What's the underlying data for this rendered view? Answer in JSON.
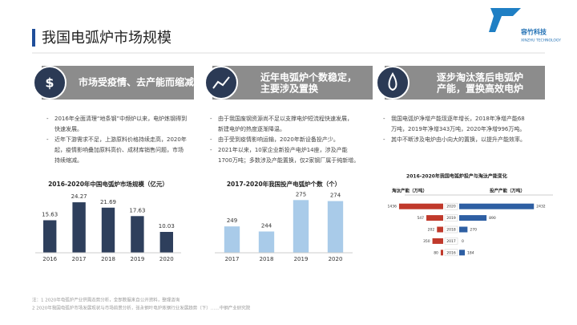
{
  "header": {
    "title": "我国电弧炉市场规模",
    "logo_name": "容竹科技",
    "logo_sub": "XINZHU TECHNOLOGY"
  },
  "panels": [
    {
      "header": "市场受疫情、去产能而缩减",
      "bullets": [
        [
          "2016年全面清理“地条钢”中频炉以来，电炉炼钢得到",
          "快速发展。"
        ],
        [
          "近年下游需求不足，上游原料价格持续走高，2020年",
          "起，疫情影响叠加原料高价、成材库销售问题，市场",
          "持续缩减。"
        ]
      ]
    },
    {
      "header_lines": [
        "近年电弧炉个数稳定，",
        "主要涉及置换"
      ],
      "bullets": [
        [
          "由于我国废钢资源尚不足以支撑电炉短流程快速发展，",
          "新建电炉的热度逐渐降温。"
        ],
        [
          "由于受到疫情影响运输，2020年新设备投产少。"
        ],
        [
          "2021年以来，10家企业新投产电炉14座，涉及产能",
          "1700万吨；多数涉及产能置换，仅2家钢厂属于纯新增。"
        ]
      ]
    },
    {
      "header_lines": [
        "逐步淘汰落后电弧炉",
        "产能，置换高效电炉"
      ],
      "bullets": [
        [
          "我国电弧炉净增产能现逐年增长，2018年净增产能68",
          "万吨，2019年净增343万吨，2020年净增996万吨。"
        ],
        [
          "其中不断涉及电炉由小向大的置换，以提升产能效率。"
        ]
      ]
    }
  ],
  "chart_data": [
    {
      "type": "bar",
      "title": "2016-2020年中国电弧炉市场规模（亿元）",
      "categories": [
        "2016",
        "2017",
        "2018",
        "2019",
        "2020"
      ],
      "values": [
        15.63,
        24.27,
        21.69,
        17.63,
        10.03
      ],
      "color": "#2e3f5c",
      "ylim": [
        0,
        27
      ]
    },
    {
      "type": "bar",
      "title": "2017-2020年我国投产电弧炉个数（个）",
      "categories": [
        "2017",
        "2018",
        "2019",
        "2020"
      ],
      "values": [
        249,
        244,
        275,
        274
      ],
      "color": "#a9cbe9",
      "ylim": [
        223,
        280
      ]
    },
    {
      "type": "butterfly",
      "title": "2016-2020年我国电弧炉投产与淘汰产能变化",
      "categories": [
        "2020",
        "2019",
        "2018",
        "2017",
        "2016"
      ],
      "series": [
        {
          "name": "淘汰产能（万吨）",
          "color": "#c0392b",
          "values": [
            1436,
            547,
            202,
            350,
            80
          ]
        },
        {
          "name": "投产产能（万吨）",
          "color": "#2e5fa3",
          "values": [
            2432,
            890,
            270,
            0,
            184
          ]
        }
      ],
      "xlim": [
        0,
        2400
      ]
    }
  ],
  "footer": [
    "注：1 2020年电弧炉产业供需态势分析，全部数据来自公开资料，整理咨询",
    "2 2020年我国电弧炉市场发展现状与市场前景分析，张永钢叶电炉炼钢行业发展趋势（下）……中钢产业研究院"
  ]
}
